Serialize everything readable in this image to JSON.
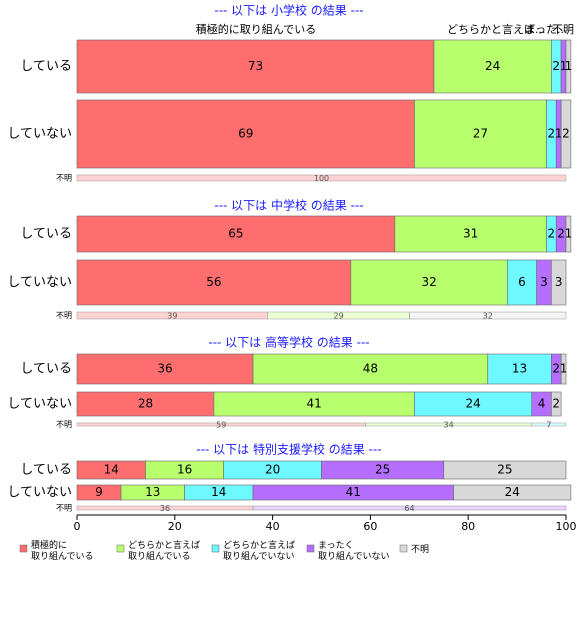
{
  "chart_data": {
    "type": "bar",
    "stacked": true,
    "orientation": "horizontal",
    "xlim": [
      0,
      100
    ],
    "x_ticks": [
      "0",
      "20",
      "40",
      "60",
      "80",
      "100"
    ],
    "grid": false,
    "legend_position": "bottom",
    "colors": [
      "#ff6e6e",
      "#b8ff6e",
      "#6ef8ff",
      "#b56eff",
      "#d8d8d8"
    ],
    "legend": [
      "積極的に\n取り組んでいる",
      "どちらかと言えば\n取り組んでいる",
      "どちらかと言えば\n取り組んでいない",
      "まったく\n取り組んでいない",
      "不明"
    ],
    "top_labels": [
      "積極的に取り組んでいる",
      "どちらかと言えば...",
      "まった...",
      "不明"
    ],
    "panels": [
      {
        "title": "--- 以下は 小学校 の結果 ---",
        "rows": [
          {
            "label": "している",
            "values": [
              73,
              24,
              2,
              1,
              1
            ]
          },
          {
            "label": "していない",
            "values": [
              69,
              27,
              2,
              1,
              2
            ]
          }
        ],
        "unknown": {
          "label": "不明",
          "values": [
            100,
            0,
            0,
            0,
            0
          ]
        }
      },
      {
        "title": "--- 以下は 中学校 の結果 ---",
        "rows": [
          {
            "label": "している",
            "values": [
              65,
              31,
              2,
              2,
              1
            ]
          },
          {
            "label": "していない",
            "values": [
              56,
              32,
              6,
              3,
              3
            ]
          }
        ],
        "unknown": {
          "label": "不明",
          "values": [
            39,
            29,
            0,
            0,
            32
          ]
        }
      },
      {
        "title": "--- 以下は 高等学校 の結果 ---",
        "rows": [
          {
            "label": "している",
            "values": [
              36,
              48,
              13,
              2,
              1
            ]
          },
          {
            "label": "していない",
            "values": [
              28,
              41,
              24,
              4,
              2
            ]
          }
        ],
        "unknown": {
          "label": "不明",
          "values": [
            59,
            34,
            7,
            0,
            0
          ]
        }
      },
      {
        "title": "--- 以下は 特別支援学校 の結果 ---",
        "rows": [
          {
            "label": "している",
            "values": [
              14,
              16,
              20,
              25,
              25
            ]
          },
          {
            "label": "していない",
            "values": [
              9,
              13,
              14,
              41,
              24
            ]
          }
        ],
        "unknown": {
          "label": "不明",
          "values": [
            36,
            0,
            0,
            64,
            0
          ]
        }
      }
    ]
  }
}
